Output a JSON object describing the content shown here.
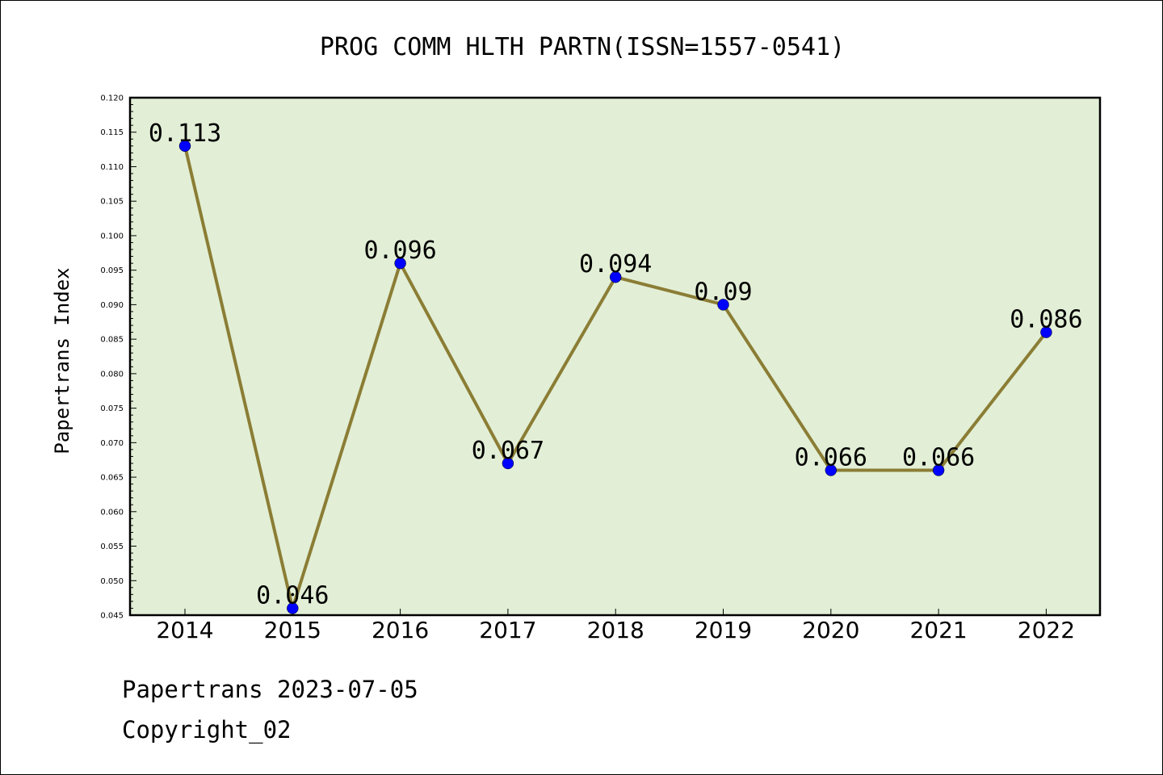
{
  "chart_data": {
    "type": "line",
    "title": "PROG COMM HLTH PARTN(ISSN=1557-0541)",
    "xlabel": "",
    "ylabel": "Papertrans Index",
    "categories": [
      "2014",
      "2015",
      "2016",
      "2017",
      "2018",
      "2019",
      "2020",
      "2021",
      "2022"
    ],
    "values": [
      0.113,
      0.046,
      0.096,
      0.067,
      0.094,
      0.09,
      0.066,
      0.066,
      0.086
    ],
    "data_labels": [
      "0.113",
      "0.046",
      "0.096",
      "0.067",
      "0.094",
      "0.09",
      "0.066",
      "0.066",
      "0.086"
    ],
    "ylim": [
      0.045,
      0.12
    ],
    "yticks": [
      "0.045",
      "0.050",
      "0.055",
      "0.060",
      "0.065",
      "0.070",
      "0.075",
      "0.080",
      "0.085",
      "0.090",
      "0.095",
      "0.100",
      "0.105",
      "0.110",
      "0.115",
      "0.120"
    ],
    "grid": false,
    "colors": {
      "plot_background": "#e2efd6",
      "line": "#8b7d35",
      "marker": "#0000ff"
    }
  },
  "footer": {
    "line1": "Papertrans 2023-07-05",
    "line2": "Copyright_02"
  }
}
